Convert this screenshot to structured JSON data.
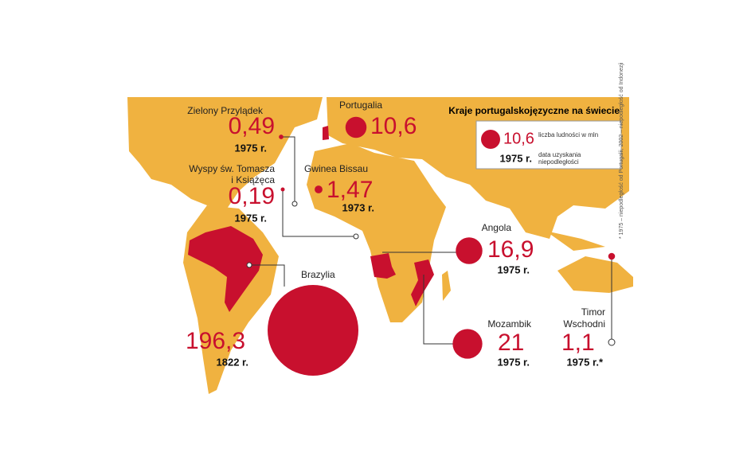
{
  "title": "Kraje portugalskojęzyczne na świecie",
  "legend": {
    "sample": "10,6",
    "population_label": "liczba ludności w mln",
    "year_sample": "1975 r.",
    "year_label": "data uzyskania niepodległości"
  },
  "footnote": "* 1975 – niepodległość od Portugalii, 2002 – niepodległość od Indonezji",
  "countries": [
    {
      "name": "Zielony Przylądek",
      "population": {
        "value": 0.49,
        "label": "0,49"
      },
      "year": "1975 r."
    },
    {
      "name": "Wyspy św. Tomasza i Książęca",
      "population": {
        "value": 0.19,
        "label": "0,19"
      },
      "year": "1975 r."
    },
    {
      "name": "Gwinea Bissau",
      "population": {
        "value": 1.47,
        "label": "1,47"
      },
      "year": "1973 r."
    },
    {
      "name": "Portugalia",
      "population": {
        "value": 10.6,
        "label": "10,6"
      },
      "year": ""
    },
    {
      "name": "Angola",
      "population": {
        "value": 16.9,
        "label": "16,9"
      },
      "year": "1975 r."
    },
    {
      "name": "Mozambik",
      "population": {
        "value": 21,
        "label": "21"
      },
      "year": "1975 r."
    },
    {
      "name": "Timor Wschodni",
      "population": {
        "value": 1.1,
        "label": "1,1"
      },
      "year": "1975 r.*"
    },
    {
      "name": "Brazylia",
      "population": {
        "value": 196.3,
        "label": "196,3"
      },
      "year": "1822 r."
    }
  ]
}
